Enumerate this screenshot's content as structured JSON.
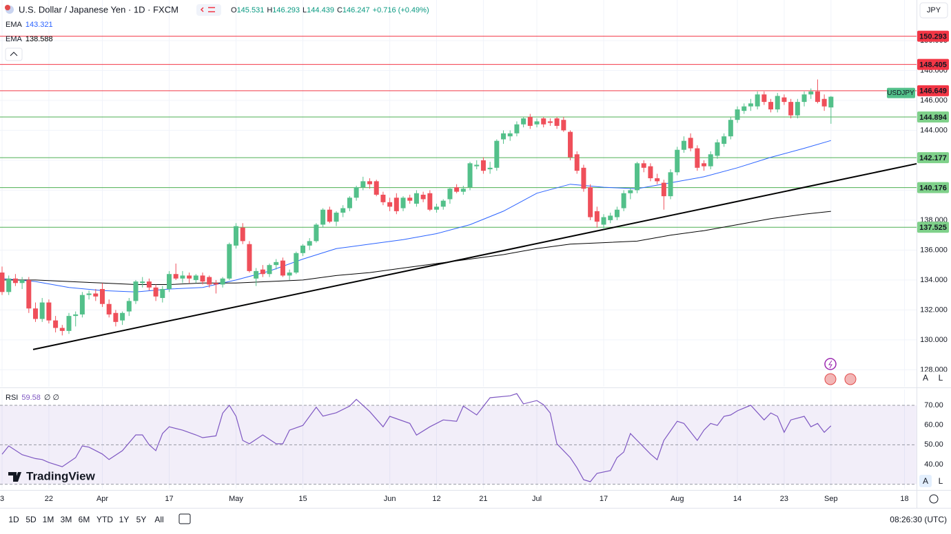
{
  "ui": {
    "header": {
      "title": "U.S. Dollar / Japanese Yen · 1D · FXCM",
      "o": "O",
      "h": "H",
      "l": "L",
      "c": "C",
      "change": "+0.716 (+0.49%)"
    },
    "currency": "JPY",
    "scale_buttons": [
      "A",
      "L"
    ],
    "symbol_tag": "USDJPY",
    "ranges": [
      "1D",
      "5D",
      "1M",
      "3M",
      "6M",
      "YTD",
      "1Y",
      "5Y",
      "All"
    ],
    "clock": "08:26:30 (UTC)",
    "logo": "TradingView"
  },
  "chart_data": {
    "type": "candlestick",
    "colors": {
      "up": "#53c08a",
      "down": "#ef4f5a"
    },
    "xlim": [
      -0.31,
      136.8
    ],
    "xticks": [
      {
        "value": 0,
        "label": "3"
      },
      {
        "value": 7,
        "label": "22"
      },
      {
        "value": 15,
        "label": "Apr"
      },
      {
        "value": 25,
        "label": "17"
      },
      {
        "value": 35,
        "label": "May"
      },
      {
        "value": 45,
        "label": "15"
      },
      {
        "value": 58,
        "label": "Jun"
      },
      {
        "value": 65,
        "label": "12"
      },
      {
        "value": 72,
        "label": "21"
      },
      {
        "value": 80,
        "label": "Jul"
      },
      {
        "value": 90,
        "label": "17"
      },
      {
        "value": 101,
        "label": "Aug"
      },
      {
        "value": 110,
        "label": "14"
      },
      {
        "value": 117,
        "label": "23"
      },
      {
        "value": 124,
        "label": "Sep"
      },
      {
        "value": 135,
        "label": "18"
      }
    ],
    "ylim": [
      126.87,
      152.71
    ],
    "yticks": [
      {
        "value": 128,
        "label": "128.000"
      },
      {
        "value": 130,
        "label": "130.000"
      },
      {
        "value": 132,
        "label": "132.000"
      },
      {
        "value": 134,
        "label": "134.000"
      },
      {
        "value": 136,
        "label": "136.000"
      },
      {
        "value": 138,
        "label": "138.000"
      },
      {
        "value": 140,
        "label": "140.000"
      },
      {
        "value": 142,
        "label": "142.000"
      },
      {
        "value": 144,
        "label": "144.000"
      },
      {
        "value": 146,
        "label": "146.000"
      },
      {
        "value": 148,
        "label": "148.000"
      },
      {
        "value": 150,
        "label": "150.000"
      }
    ],
    "grid": true,
    "levels": [
      {
        "value": 150.293,
        "color": "#f23645"
      },
      {
        "value": 148.405,
        "color": "#f23645"
      },
      {
        "value": 146.649,
        "color": "#f23645"
      },
      {
        "value": 144.894,
        "color": "#4caf50"
      },
      {
        "value": 142.177,
        "color": "#4caf50"
      },
      {
        "value": 140.176,
        "color": "#4caf50"
      },
      {
        "value": 137.525,
        "color": "#4caf50"
      }
    ],
    "ohlc": [
      [
        134.5,
        134.9,
        133.0,
        133.2
      ],
      [
        133.2,
        134.3,
        133.0,
        134.1
      ],
      [
        134.1,
        134.4,
        133.6,
        133.8
      ],
      [
        133.8,
        134.2,
        133.4,
        134.0
      ],
      [
        134.0,
        134.2,
        131.8,
        132.1
      ],
      [
        132.1,
        132.5,
        131.2,
        131.4
      ],
      [
        131.4,
        132.8,
        131.2,
        132.5
      ],
      [
        132.5,
        132.7,
        131.1,
        131.3
      ],
      [
        131.3,
        131.6,
        130.5,
        130.8
      ],
      [
        130.8,
        131.0,
        130.3,
        130.6
      ],
      [
        130.6,
        131.8,
        130.4,
        131.6
      ],
      [
        131.6,
        131.9,
        130.9,
        131.7
      ],
      [
        131.7,
        133.2,
        131.5,
        133.0
      ],
      [
        133.0,
        133.3,
        132.7,
        133.1
      ],
      [
        133.1,
        133.4,
        132.6,
        132.9
      ],
      [
        133.4,
        133.8,
        132.2,
        132.4
      ],
      [
        132.4,
        132.7,
        131.5,
        131.7
      ],
      [
        131.8,
        132.0,
        130.9,
        131.2
      ],
      [
        131.3,
        131.9,
        131.0,
        131.8
      ],
      [
        131.9,
        132.8,
        131.6,
        132.6
      ],
      [
        132.6,
        134.0,
        132.4,
        133.9
      ],
      [
        133.8,
        134.2,
        133.5,
        133.9
      ],
      [
        133.9,
        134.1,
        133.3,
        133.5
      ],
      [
        133.5,
        133.7,
        132.6,
        132.9
      ],
      [
        132.8,
        133.6,
        132.5,
        133.4
      ],
      [
        133.4,
        134.6,
        133.2,
        134.4
      ],
      [
        134.4,
        135.1,
        134.0,
        134.1
      ],
      [
        134.1,
        134.6,
        133.8,
        134.3
      ],
      [
        134.3,
        134.5,
        133.8,
        134.1
      ],
      [
        134.0,
        134.4,
        133.8,
        134.3
      ],
      [
        134.3,
        134.5,
        133.7,
        133.9
      ],
      [
        134.2,
        134.3,
        133.5,
        133.7
      ],
      [
        133.8,
        134.0,
        133.1,
        133.7
      ],
      [
        133.7,
        134.2,
        133.5,
        134.1
      ],
      [
        134.1,
        136.5,
        134.0,
        136.4
      ],
      [
        136.3,
        137.8,
        136.1,
        137.6
      ],
      [
        137.5,
        137.8,
        136.4,
        136.6
      ],
      [
        136.4,
        136.6,
        134.5,
        134.6
      ],
      [
        134.1,
        134.8,
        133.6,
        134.6
      ],
      [
        134.7,
        135.0,
        134.2,
        134.4
      ],
      [
        134.4,
        135.1,
        134.2,
        135.0
      ],
      [
        135.0,
        135.4,
        134.7,
        135.2
      ],
      [
        135.3,
        135.5,
        134.2,
        134.3
      ],
      [
        134.3,
        134.7,
        134.0,
        134.5
      ],
      [
        134.5,
        135.9,
        134.4,
        135.8
      ],
      [
        135.8,
        136.4,
        135.6,
        136.3
      ],
      [
        136.3,
        136.8,
        136.0,
        136.6
      ],
      [
        136.6,
        137.8,
        136.5,
        137.7
      ],
      [
        137.7,
        138.8,
        137.5,
        138.7
      ],
      [
        138.7,
        138.9,
        137.8,
        137.9
      ],
      [
        137.9,
        138.6,
        137.6,
        138.5
      ],
      [
        138.5,
        139.0,
        138.2,
        138.8
      ],
      [
        138.8,
        139.6,
        138.6,
        139.5
      ],
      [
        139.5,
        140.3,
        139.3,
        140.2
      ],
      [
        140.2,
        140.9,
        140.0,
        140.6
      ],
      [
        140.6,
        140.8,
        140.1,
        140.4
      ],
      [
        140.6,
        140.7,
        139.6,
        139.7
      ],
      [
        139.7,
        139.9,
        139.0,
        139.2
      ],
      [
        139.2,
        139.5,
        138.6,
        138.9
      ],
      [
        139.5,
        139.8,
        138.4,
        138.6
      ],
      [
        138.8,
        139.6,
        138.6,
        139.5
      ],
      [
        139.5,
        139.7,
        139.1,
        139.3
      ],
      [
        139.1,
        140.0,
        138.9,
        139.8
      ],
      [
        139.7,
        139.9,
        139.2,
        139.4
      ],
      [
        139.8,
        140.0,
        138.6,
        138.7
      ],
      [
        138.7,
        139.1,
        138.5,
        138.9
      ],
      [
        138.9,
        139.4,
        138.7,
        139.3
      ],
      [
        139.4,
        140.2,
        139.1,
        140.1
      ],
      [
        140.2,
        140.4,
        139.8,
        139.9
      ],
      [
        139.9,
        140.3,
        139.7,
        140.1
      ],
      [
        140.2,
        141.9,
        140.0,
        141.8
      ],
      [
        141.6,
        142.0,
        141.4,
        141.7
      ],
      [
        142.0,
        142.2,
        141.1,
        141.3
      ],
      [
        141.4,
        141.9,
        141.1,
        141.5
      ],
      [
        141.5,
        143.4,
        141.3,
        143.3
      ],
      [
        143.4,
        144.0,
        143.1,
        143.8
      ],
      [
        143.6,
        144.0,
        143.3,
        143.8
      ],
      [
        143.8,
        144.6,
        143.6,
        144.4
      ],
      [
        144.4,
        144.9,
        144.2,
        144.8
      ],
      [
        144.9,
        145.1,
        144.1,
        144.3
      ],
      [
        144.4,
        144.8,
        144.2,
        144.6
      ],
      [
        144.8,
        144.9,
        144.2,
        144.4
      ],
      [
        144.6,
        144.8,
        144.3,
        144.5
      ],
      [
        144.8,
        144.9,
        144.1,
        144.3
      ],
      [
        144.7,
        144.9,
        143.9,
        144.0
      ],
      [
        143.9,
        144.0,
        142.0,
        142.2
      ],
      [
        142.4,
        142.6,
        141.1,
        141.3
      ],
      [
        141.5,
        141.7,
        139.9,
        140.1
      ],
      [
        140.2,
        140.4,
        138.0,
        138.2
      ],
      [
        138.6,
        138.9,
        137.5,
        137.9
      ],
      [
        137.7,
        138.4,
        137.4,
        138.2
      ],
      [
        138.0,
        138.5,
        137.8,
        138.3
      ],
      [
        138.2,
        138.9,
        138.0,
        138.7
      ],
      [
        138.8,
        140.0,
        138.6,
        139.8
      ],
      [
        139.8,
        140.2,
        139.4,
        140.0
      ],
      [
        140.0,
        141.9,
        139.8,
        141.8
      ],
      [
        141.8,
        142.0,
        141.2,
        141.5
      ],
      [
        141.6,
        141.8,
        140.6,
        140.8
      ],
      [
        140.8,
        141.1,
        140.4,
        140.6
      ],
      [
        140.5,
        140.7,
        138.7,
        139.6
      ],
      [
        139.6,
        141.4,
        139.4,
        141.2
      ],
      [
        141.2,
        142.9,
        141.0,
        142.7
      ],
      [
        142.7,
        143.6,
        142.5,
        143.3
      ],
      [
        143.5,
        143.8,
        142.6,
        142.8
      ],
      [
        142.8,
        143.0,
        141.3,
        141.5
      ],
      [
        141.8,
        142.0,
        141.3,
        141.6
      ],
      [
        141.6,
        142.6,
        141.4,
        142.4
      ],
      [
        142.3,
        143.4,
        142.1,
        143.2
      ],
      [
        143.1,
        143.8,
        142.9,
        143.6
      ],
      [
        143.6,
        144.9,
        143.4,
        144.7
      ],
      [
        144.7,
        145.6,
        144.5,
        145.4
      ],
      [
        145.3,
        145.8,
        145.1,
        145.6
      ],
      [
        145.6,
        146.1,
        145.3,
        145.8
      ],
      [
        145.6,
        146.6,
        145.4,
        146.4
      ],
      [
        146.4,
        146.6,
        145.7,
        145.9
      ],
      [
        145.9,
        146.1,
        145.2,
        145.4
      ],
      [
        145.4,
        146.5,
        145.2,
        146.3
      ],
      [
        146.2,
        146.4,
        145.7,
        145.9
      ],
      [
        145.9,
        146.1,
        144.8,
        145.0
      ],
      [
        145.0,
        146.1,
        144.8,
        145.9
      ],
      [
        145.9,
        146.6,
        145.6,
        146.4
      ],
      [
        146.4,
        146.8,
        146.1,
        146.6
      ],
      [
        146.6,
        147.4,
        145.8,
        145.9
      ],
      [
        146.1,
        146.4,
        145.3,
        145.6
      ],
      [
        145.531,
        146.293,
        144.439,
        146.247
      ]
    ],
    "series": [
      {
        "name": "EMA",
        "color": "#2962ff",
        "x": [
          0,
          5,
          10,
          15,
          20,
          25,
          30,
          35,
          40,
          45,
          50,
          55,
          60,
          65,
          70,
          75,
          80,
          85,
          90,
          95,
          100,
          105,
          110,
          115,
          120,
          124
        ],
        "values": [
          134.1,
          133.9,
          133.5,
          133.3,
          133.2,
          133.4,
          133.5,
          134.0,
          134.6,
          135.4,
          136.1,
          136.4,
          136.7,
          137.1,
          137.7,
          138.6,
          139.8,
          140.4,
          140.2,
          140.1,
          140.5,
          140.9,
          141.5,
          142.2,
          142.8,
          143.321
        ]
      },
      {
        "name": "EMA",
        "color": "#000000",
        "x": [
          0,
          5,
          10,
          15,
          20,
          25,
          30,
          35,
          40,
          45,
          50,
          55,
          60,
          65,
          70,
          75,
          80,
          85,
          90,
          95,
          100,
          105,
          110,
          115,
          120,
          124
        ],
        "values": [
          134.0,
          134.0,
          133.9,
          133.8,
          133.7,
          133.7,
          133.8,
          133.8,
          133.9,
          134.0,
          134.3,
          134.5,
          134.8,
          135.1,
          135.4,
          135.7,
          136.1,
          136.4,
          136.5,
          136.6,
          137.0,
          137.3,
          137.7,
          138.1,
          138.4,
          138.588
        ]
      }
    ],
    "trendline": {
      "x": [
        4.64,
        136.8
      ],
      "y": [
        129.36,
        141.77
      ],
      "color": "#000000"
    },
    "rsi": {
      "name": "RSI",
      "extra": "∅ ∅",
      "color": "#7e57c2",
      "ylim": [
        27.8,
        78
      ],
      "yticks": [
        {
          "value": 40,
          "label": "40.00"
        },
        {
          "value": 50,
          "label": "50.00"
        },
        {
          "value": 60,
          "label": "60.00"
        },
        {
          "value": 70,
          "label": "70.00"
        }
      ],
      "levels": [
        30,
        50,
        70
      ],
      "x": [
        0,
        1,
        3,
        5,
        6,
        7,
        9,
        11,
        12,
        13,
        15,
        16,
        18,
        20,
        21,
        22,
        23,
        24,
        25,
        27,
        29,
        30,
        32,
        33,
        34,
        35,
        36,
        37,
        39,
        41,
        42,
        43,
        45,
        47,
        48,
        50,
        52,
        53,
        55,
        57,
        58,
        61,
        62,
        64,
        66,
        68,
        69,
        71,
        73,
        76,
        77,
        78,
        80,
        81,
        82,
        83,
        85,
        86,
        87,
        88,
        89,
        91,
        92,
        93,
        94,
        95,
        97,
        98,
        99,
        101,
        102,
        104,
        105,
        106,
        107,
        108,
        109,
        110,
        112,
        114,
        115,
        116,
        117,
        118,
        120,
        121,
        122,
        123,
        124
      ],
      "values": [
        45.2,
        49.4,
        45,
        43,
        42.5,
        41,
        38.9,
        43.5,
        49.4,
        48.8,
        45.3,
        42.5,
        47,
        55,
        55,
        50,
        47,
        55.7,
        59.1,
        57.4,
        55,
        53.6,
        54.5,
        66,
        70,
        64.4,
        52.2,
        50.5,
        55,
        50.5,
        50.5,
        57.4,
        59.8,
        69,
        64.5,
        66.2,
        69.6,
        73,
        66.8,
        59.1,
        64.4,
        60.8,
        54.9,
        59.1,
        62.6,
        61.9,
        69.6,
        65.1,
        73.8,
        74.8,
        75.9,
        70.7,
        72.4,
        70.3,
        66.1,
        50.5,
        43.5,
        38.4,
        32.3,
        31.3,
        35.5,
        36.9,
        43.5,
        46.3,
        55.7,
        52.2,
        45.3,
        42.4,
        52.2,
        61.9,
        60.8,
        52.2,
        57.4,
        60.8,
        59.8,
        64.4,
        65.1,
        67.2,
        70,
        62.6,
        66.1,
        64.4,
        56.3,
        62.6,
        64.4,
        59.1,
        60.8,
        56.3,
        59.58
      ]
    }
  }
}
